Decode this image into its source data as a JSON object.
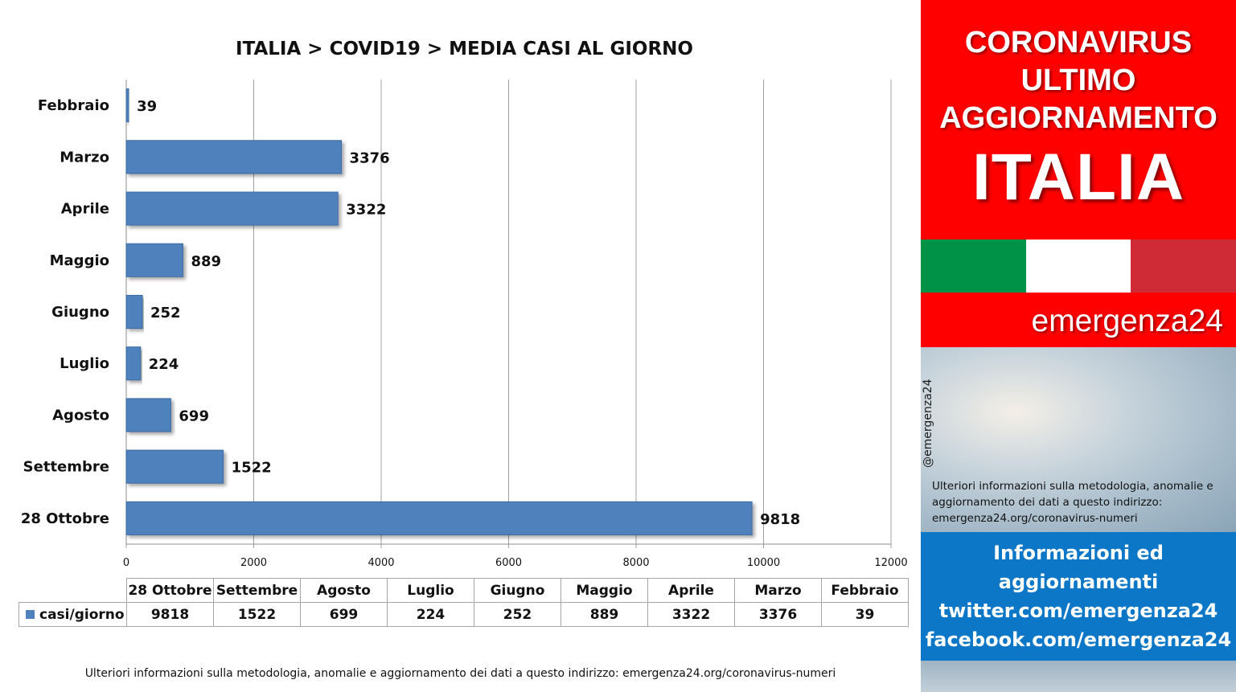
{
  "chart_data": {
    "type": "bar",
    "orientation": "horizontal",
    "title": "ITALIA >  COVID19 > MEDIA CASI AL GIORNO",
    "categories": [
      "Febbraio",
      "Marzo",
      "Aprile",
      "Maggio",
      "Giugno",
      "Luglio",
      "Agosto",
      "Settembre",
      "28 Ottobre"
    ],
    "series": [
      {
        "name": "casi/giorno",
        "values": [
          39,
          3376,
          3322,
          889,
          252,
          224,
          699,
          1522,
          9818
        ]
      }
    ],
    "xlim": [
      0,
      12000
    ],
    "xticks": [
      "0",
      "2000",
      "4000",
      "6000",
      "8000",
      "10000",
      "12000"
    ],
    "grid": true,
    "data_labels": true,
    "colors": {
      "bar": "#4f81bd",
      "bar_edge": "#3a6aa3"
    }
  },
  "data_table": {
    "columns": [
      "28 Ottobre",
      "Settembre",
      "Agosto",
      "Luglio",
      "Giugno",
      "Maggio",
      "Aprile",
      "Marzo",
      "Febbraio"
    ],
    "row_label": "casi/giorno",
    "values": [
      "9818",
      "1522",
      "699",
      "224",
      "252",
      "889",
      "3322",
      "3376",
      "39"
    ]
  },
  "footnote": "Ulteriori informazioni sulla metodologia, anomalie e aggiornamento dei dati a questo indirizzo: emergenza24.org/coronavirus-numeri",
  "side_panel": {
    "headline": [
      "CORONAVIRUS",
      "ULTIMO",
      "AGGIORNAMENTO"
    ],
    "country": "ITALIA",
    "flag_colors": [
      "#009246",
      "#ffffff",
      "#ce2b37"
    ],
    "brand": "emergenza24",
    "handle": "@emergenza24",
    "note": "Ulteriori informazioni sulla metodologia, anomalie e aggiornamento dei dati a questo indirizzo: emergenza24.org/coronavirus-numeri",
    "info_lines": [
      "Informazioni ed",
      "aggiornamenti",
      "twitter.com/emergenza24",
      "facebook.com/emergenza24"
    ],
    "colors": {
      "red": "#fe0000",
      "blue": "#0d77c7"
    }
  }
}
